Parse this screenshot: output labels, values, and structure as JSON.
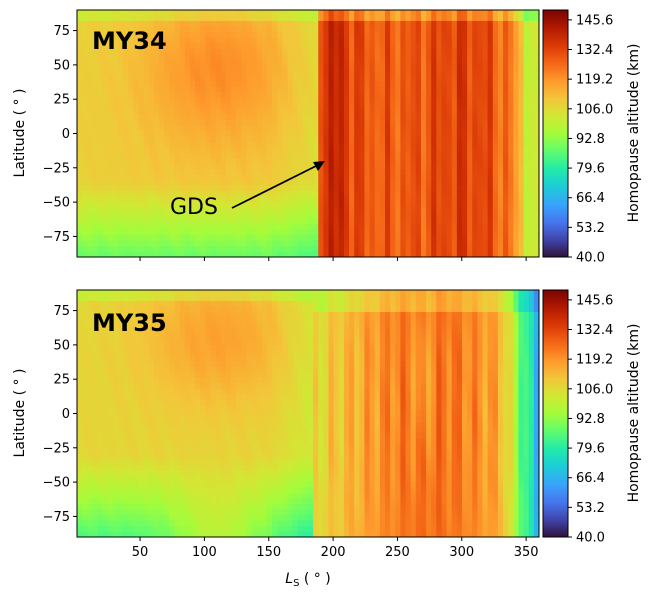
{
  "chart_data": [
    {
      "type": "heatmap",
      "panel_label": "MY34",
      "xlabel": "",
      "ylabel": "Latitude ( ° )",
      "xlim": [
        1,
        360
      ],
      "ylim": [
        -90,
        90
      ],
      "xticks": [
        50,
        100,
        150,
        200,
        250,
        300,
        350
      ],
      "show_xtick_labels": false,
      "yticks": [
        75,
        50,
        25,
        0,
        -25,
        -50,
        -75
      ],
      "ytick_labels": [
        "75",
        "50",
        "25",
        "0",
        "−25",
        "−50",
        "−75"
      ],
      "colorbar": {
        "label": "Homopause altitude (km)",
        "range": [
          40.0,
          150.0
        ],
        "ticks": [
          145.6,
          132.4,
          119.2,
          106.0,
          92.8,
          79.6,
          66.4,
          53.2,
          40.0
        ],
        "tick_labels": [
          "145.6",
          "132.4",
          "119.2",
          "106.0",
          "92.8",
          "79.6",
          "66.4",
          "53.2",
          "40.0"
        ]
      },
      "annotation": {
        "text": "GDS",
        "arrow_from": [
          120,
          -55
        ],
        "arrow_to": [
          196,
          -20
        ]
      }
    },
    {
      "type": "heatmap",
      "panel_label": "MY35",
      "xlabel": "L_S ( ° )",
      "ylabel": "Latitude ( ° )",
      "xlim": [
        1,
        360
      ],
      "ylim": [
        -90,
        90
      ],
      "xticks": [
        50,
        100,
        150,
        200,
        250,
        300,
        350
      ],
      "xtick_labels": [
        "50",
        "100",
        "150",
        "200",
        "250",
        "300",
        "350"
      ],
      "show_xtick_labels": true,
      "yticks": [
        75,
        50,
        25,
        0,
        -25,
        -50,
        -75
      ],
      "ytick_labels": [
        "75",
        "50",
        "25",
        "0",
        "−25",
        "−50",
        "−75"
      ],
      "colorbar": {
        "label": "Homopause altitude (km)",
        "range": [
          40.0,
          150.0
        ],
        "ticks": [
          145.6,
          132.4,
          119.2,
          106.0,
          92.8,
          79.6,
          66.4,
          53.2,
          40.0
        ],
        "tick_labels": [
          "145.6",
          "132.4",
          "119.2",
          "106.0",
          "92.8",
          "79.6",
          "66.4",
          "53.2",
          "40.0"
        ]
      }
    }
  ]
}
